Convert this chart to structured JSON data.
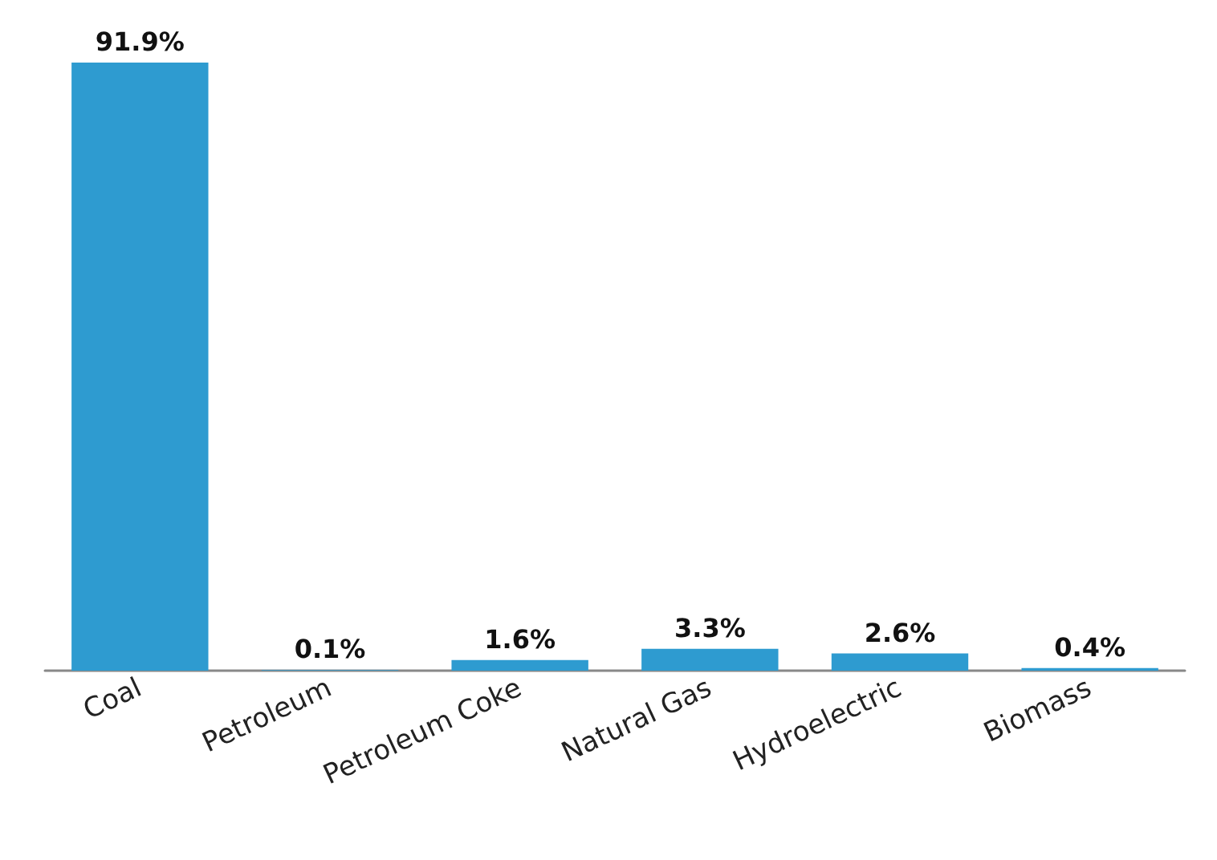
{
  "chart_data": {
    "type": "bar",
    "categories": [
      "Coal",
      "Petroleum",
      "Petroleum Coke",
      "Natural Gas",
      "Hydroelectric",
      "Biomass"
    ],
    "values": [
      91.9,
      0.1,
      1.6,
      3.3,
      2.6,
      0.4
    ],
    "value_labels": [
      "91.9%",
      "0.1%",
      "1.6%",
      "3.3%",
      "2.6%",
      "0.4%"
    ],
    "color": "#2e9bd0"
  }
}
